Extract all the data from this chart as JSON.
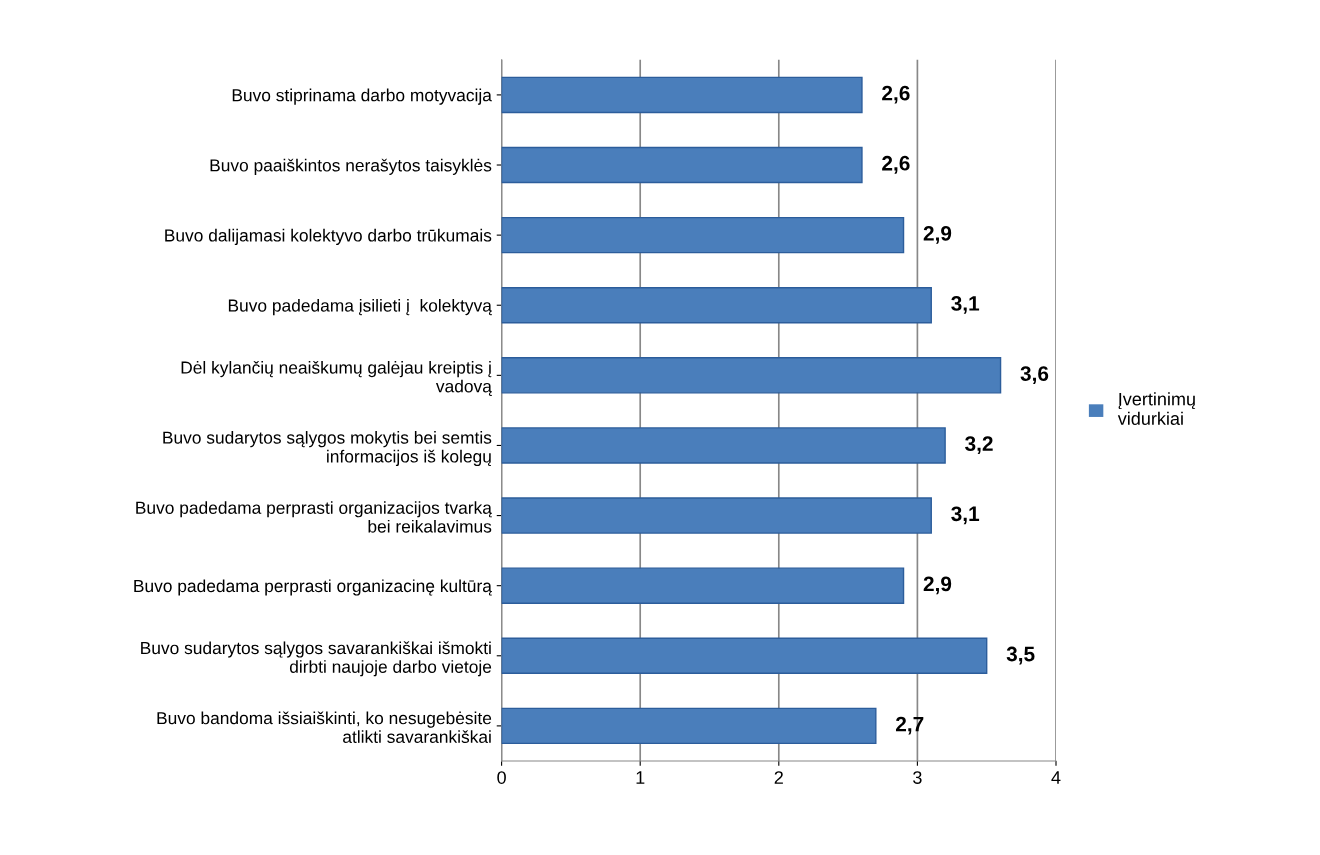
{
  "chart_data": {
    "type": "bar",
    "orientation": "horizontal",
    "categories": [
      "Buvo stiprinama darbo motyvacija",
      "Buvo paaiškintos nerašytos taisyklės",
      "Buvo dalijamasi kolektyvo darbo trūkumais",
      "Buvo padedama įsilieti į  kolektyvą",
      "Dėl kylančių neaiškumų galėjau kreiptis į\nvadovą",
      "Buvo sudarytos sąlygos mokytis bei semtis\ninformacijos iš kolegų",
      "Buvo padedama perprasti organizacijos tvarką\nbei reikalavimus",
      "Buvo padedama perprasti organizacinę kultūrą",
      "Buvo sudarytos sąlygos savarankiškai išmokti\ndirbti naujoje darbo vietoje",
      "Buvo bandoma išsiaiškinti, ko nesugebėsite\natlikti savarankiškai"
    ],
    "series": [
      {
        "name": "Įvertinimų vidurkiai",
        "color": "#4a7ebb",
        "values": [
          2.6,
          2.6,
          2.9,
          3.1,
          3.6,
          3.2,
          3.1,
          2.9,
          3.5,
          2.7
        ]
      }
    ],
    "value_labels": [
      "2,6",
      "2,6",
      "2,9",
      "3,1",
      "3,6",
      "3,2",
      "3,1",
      "2,9",
      "3,5",
      "2,7"
    ],
    "xlim": [
      0,
      4
    ],
    "xticks": [
      0,
      1,
      2,
      3,
      4
    ],
    "grid": "x",
    "legend": "right"
  }
}
